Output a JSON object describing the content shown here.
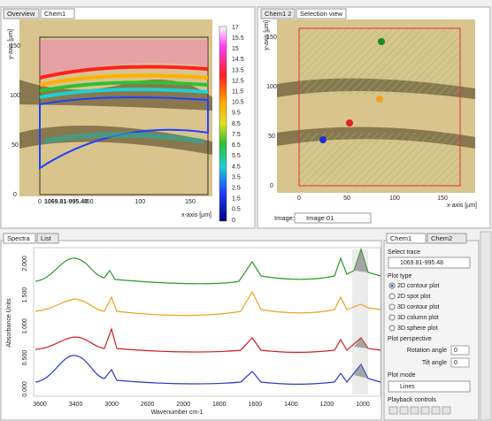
{
  "chem_view": {
    "tabs": [
      "Overview",
      "Chem1"
    ],
    "y_axis_label": "y-axis [µm]",
    "y_ticks": [
      "150",
      "100",
      "50",
      "0"
    ],
    "x_ticks": [
      "0",
      "50",
      "100",
      "150"
    ],
    "x_axis_label": "x-axis [µm]",
    "range_label": "1069.81-995.48",
    "colorbar_ticks": [
      "17",
      "15.5",
      "15",
      "14.5",
      "13.5",
      "12.5",
      "11.5",
      "10.5",
      "9.5",
      "8.5",
      "7.5",
      "6.5",
      "5.5",
      "4.5",
      "3.5",
      "2.5",
      "1.5",
      "0.5",
      "0"
    ]
  },
  "selection_view": {
    "tabs": [
      "Chem1 2",
      "Selection view"
    ],
    "y_axis_label": "y-axis [µm]",
    "y_ticks": [
      "150",
      "100",
      "50",
      "0"
    ],
    "x_ticks": [
      "0",
      "50",
      "100",
      "150"
    ],
    "x_axis_label": "x-axis [µm]",
    "image_label": "Image:",
    "image_value": "Image 01"
  },
  "spectra": {
    "tabs": [
      "Spectra",
      "List"
    ],
    "y_axis_label": "Absorbance Units",
    "y_ticks": [
      "2.000",
      "1.500",
      "1.000",
      "0.500",
      "0.000"
    ],
    "x_ticks": [
      "3600",
      "3400",
      "3000",
      "2600",
      "2000",
      "1800",
      "1600",
      "1400",
      "1200",
      "1000"
    ],
    "x_axis_label": "Wavenumber cm-1"
  },
  "controls": {
    "tabs": [
      "Chem1",
      "Chem2"
    ],
    "select_trace_label": "Select trace",
    "trace_value": "1069.81-995.48",
    "plot_type_label": "Plot type",
    "plot_types": [
      "2D contour plot",
      "2D spot plot",
      "3D contour plot",
      "3D column plot",
      "3D sphere plot"
    ],
    "perspective_label": "Plot perspective",
    "rotation_label": "Rotation angle",
    "rotation_value": "0",
    "tilt_label": "Tilt angle",
    "tilt_value": "0",
    "plot_mode_label": "Plot mode",
    "plot_mode_value": "Lines",
    "playback_label": "Playback controls"
  }
}
